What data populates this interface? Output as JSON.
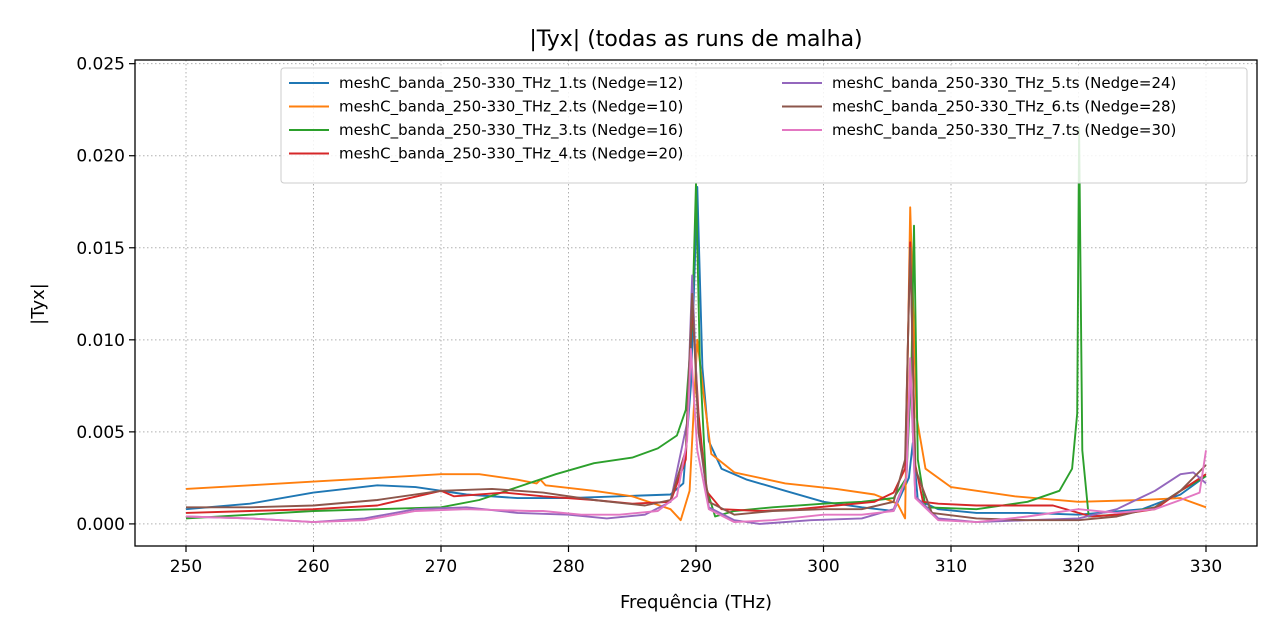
{
  "chart_data": {
    "type": "line",
    "title": "|Tyx| (todas as runs de malha)",
    "xlabel": "Frequência (THz)",
    "ylabel": "|Tyx|",
    "xlim": [
      246,
      334
    ],
    "ylim": [
      -0.0012,
      0.0252
    ],
    "x_ticks": [
      250,
      260,
      270,
      280,
      290,
      300,
      310,
      320,
      330
    ],
    "x_tick_labels": [
      "250",
      "260",
      "270",
      "280",
      "290",
      "300",
      "310",
      "320",
      "330"
    ],
    "y_ticks": [
      0.0,
      0.005,
      0.01,
      0.015,
      0.02,
      0.025
    ],
    "y_tick_labels": [
      "0.000",
      "0.005",
      "0.010",
      "0.015",
      "0.020",
      "0.025"
    ],
    "grid": true,
    "legend_position": "top-right",
    "legend_columns": 2,
    "series": [
      {
        "name": "meshC_banda_250-330_THz_1.ts (Nedge=12)",
        "color": "#1f77b4",
        "points": [
          [
            250,
            0.0008
          ],
          [
            255,
            0.0011
          ],
          [
            260,
            0.0017
          ],
          [
            265,
            0.0021
          ],
          [
            268,
            0.002
          ],
          [
            272,
            0.0016
          ],
          [
            276,
            0.0014
          ],
          [
            280,
            0.0014
          ],
          [
            284,
            0.0015
          ],
          [
            288,
            0.0016
          ],
          [
            289,
            0.0022
          ],
          [
            289.6,
            0.0075
          ],
          [
            290.1,
            0.0183
          ],
          [
            290.5,
            0.0085
          ],
          [
            291,
            0.0045
          ],
          [
            292,
            0.003
          ],
          [
            294,
            0.0024
          ],
          [
            297,
            0.0018
          ],
          [
            300,
            0.0012
          ],
          [
            303,
            0.0009
          ],
          [
            305.5,
            0.0007
          ],
          [
            306.7,
            0.0025
          ],
          [
            307,
            0.0044
          ],
          [
            307.4,
            0.0013
          ],
          [
            309,
            0.0008
          ],
          [
            312,
            0.0006
          ],
          [
            316,
            0.0006
          ],
          [
            320,
            0.0005
          ],
          [
            325,
            0.0008
          ],
          [
            328,
            0.0016
          ],
          [
            330,
            0.0026
          ]
        ]
      },
      {
        "name": "meshC_banda_250-330_THz_2.ts (Nedge=10)",
        "color": "#ff7f0e",
        "points": [
          [
            250,
            0.0019
          ],
          [
            255,
            0.0021
          ],
          [
            260,
            0.0023
          ],
          [
            265,
            0.0025
          ],
          [
            270,
            0.0027
          ],
          [
            273,
            0.0027
          ],
          [
            276,
            0.0024
          ],
          [
            277.5,
            0.0022
          ],
          [
            277.8,
            0.0024
          ],
          [
            278.2,
            0.0021
          ],
          [
            282,
            0.0018
          ],
          [
            285,
            0.0015
          ],
          [
            288,
            0.0008
          ],
          [
            288.8,
            0.0002
          ],
          [
            289.5,
            0.0018
          ],
          [
            290.1,
            0.01
          ],
          [
            290.6,
            0.007
          ],
          [
            291.2,
            0.0038
          ],
          [
            293,
            0.0028
          ],
          [
            297,
            0.0022
          ],
          [
            301,
            0.0019
          ],
          [
            304,
            0.0016
          ],
          [
            305.8,
            0.0011
          ],
          [
            306.4,
            0.0003
          ],
          [
            306.8,
            0.0172
          ],
          [
            307.3,
            0.0058
          ],
          [
            308,
            0.003
          ],
          [
            310,
            0.002
          ],
          [
            315,
            0.0015
          ],
          [
            320,
            0.0012
          ],
          [
            325,
            0.0013
          ],
          [
            328,
            0.0014
          ],
          [
            330,
            0.0009
          ]
        ]
      },
      {
        "name": "meshC_banda_250-330_THz_3.ts (Nedge=16)",
        "color": "#2ca02c",
        "points": [
          [
            250,
            0.0003
          ],
          [
            255,
            0.0005
          ],
          [
            260,
            0.0007
          ],
          [
            265,
            0.0008
          ],
          [
            270,
            0.0009
          ],
          [
            273,
            0.0013
          ],
          [
            276,
            0.002
          ],
          [
            279,
            0.0027
          ],
          [
            282,
            0.0033
          ],
          [
            285,
            0.0036
          ],
          [
            287,
            0.0041
          ],
          [
            288.5,
            0.0048
          ],
          [
            289.2,
            0.0062
          ],
          [
            289.7,
            0.011
          ],
          [
            290,
            0.0185
          ],
          [
            290.3,
            0.009
          ],
          [
            290.8,
            0.002
          ],
          [
            291.5,
            0.0004
          ],
          [
            293,
            0.0007
          ],
          [
            296,
            0.0009
          ],
          [
            300,
            0.0011
          ],
          [
            303,
            0.0012
          ],
          [
            305.5,
            0.0014
          ],
          [
            306.5,
            0.0025
          ],
          [
            306.9,
            0.0086
          ],
          [
            307.1,
            0.0162
          ],
          [
            307.4,
            0.0035
          ],
          [
            308,
            0.0009
          ],
          [
            312,
            0.0008
          ],
          [
            316,
            0.0012
          ],
          [
            318.5,
            0.0018
          ],
          [
            319.5,
            0.003
          ],
          [
            319.9,
            0.006
          ],
          [
            320.05,
            0.0215
          ],
          [
            320.3,
            0.004
          ],
          [
            320.8,
            0.0004
          ],
          [
            323,
            0.0005
          ],
          [
            326,
            0.0009
          ],
          [
            328,
            0.0018
          ],
          [
            330,
            0.0026
          ]
        ]
      },
      {
        "name": "meshC_banda_250-330_THz_4.ts (Nedge=20)",
        "color": "#d62728",
        "points": [
          [
            250,
            0.0006
          ],
          [
            255,
            0.0007
          ],
          [
            260,
            0.0008
          ],
          [
            265,
            0.001
          ],
          [
            270,
            0.0018
          ],
          [
            271,
            0.0015
          ],
          [
            275,
            0.0017
          ],
          [
            278,
            0.0015
          ],
          [
            282,
            0.0013
          ],
          [
            285,
            0.0011
          ],
          [
            288,
            0.0012
          ],
          [
            289.2,
            0.0035
          ],
          [
            289.7,
            0.012
          ],
          [
            290.2,
            0.006
          ],
          [
            290.8,
            0.0018
          ],
          [
            292,
            0.0008
          ],
          [
            295,
            0.0007
          ],
          [
            298,
            0.0008
          ],
          [
            301,
            0.001
          ],
          [
            304,
            0.0012
          ],
          [
            305.5,
            0.0017
          ],
          [
            306.4,
            0.003
          ],
          [
            306.8,
            0.0153
          ],
          [
            307.2,
            0.0032
          ],
          [
            307.8,
            0.0012
          ],
          [
            309,
            0.0011
          ],
          [
            312,
            0.001
          ],
          [
            315,
            0.001
          ],
          [
            318,
            0.001
          ],
          [
            321,
            0.0004
          ],
          [
            323,
            0.0005
          ],
          [
            326,
            0.0008
          ],
          [
            328,
            0.0018
          ],
          [
            330,
            0.0027
          ]
        ]
      },
      {
        "name": "meshC_banda_250-330_THz_5.ts (Nedge=24)",
        "color": "#9467bd",
        "points": [
          [
            250,
            0.0004
          ],
          [
            255,
            0.0003
          ],
          [
            260,
            0.0001
          ],
          [
            264,
            0.0003
          ],
          [
            268,
            0.0008
          ],
          [
            272,
            0.0009
          ],
          [
            276,
            0.0006
          ],
          [
            280,
            0.0005
          ],
          [
            283,
            0.0003
          ],
          [
            286,
            0.0005
          ],
          [
            288,
            0.0012
          ],
          [
            289.3,
            0.0055
          ],
          [
            289.7,
            0.0135
          ],
          [
            290.2,
            0.005
          ],
          [
            291,
            0.0009
          ],
          [
            293,
            0.0002
          ],
          [
            295,
            0.0
          ],
          [
            299,
            0.0002
          ],
          [
            303,
            0.0003
          ],
          [
            305.5,
            0.0008
          ],
          [
            306.5,
            0.0025
          ],
          [
            306.8,
            0.0085
          ],
          [
            307.2,
            0.0015
          ],
          [
            309,
            0.0003
          ],
          [
            312,
            0.0001
          ],
          [
            316,
            0.0002
          ],
          [
            320,
            0.0003
          ],
          [
            323,
            0.0008
          ],
          [
            326,
            0.0018
          ],
          [
            328,
            0.0027
          ],
          [
            329,
            0.0028
          ],
          [
            330,
            0.0022
          ]
        ]
      },
      {
        "name": "meshC_banda_250-330_THz_6.ts (Nedge=28)",
        "color": "#8c564b",
        "points": [
          [
            250,
            0.0009
          ],
          [
            255,
            0.0009
          ],
          [
            260,
            0.001
          ],
          [
            265,
            0.0013
          ],
          [
            270,
            0.0018
          ],
          [
            274,
            0.0019
          ],
          [
            278,
            0.0017
          ],
          [
            282,
            0.0013
          ],
          [
            286,
            0.001
          ],
          [
            288,
            0.0013
          ],
          [
            289.2,
            0.004
          ],
          [
            289.7,
            0.0125
          ],
          [
            290.2,
            0.005
          ],
          [
            291,
            0.0012
          ],
          [
            293,
            0.0005
          ],
          [
            296,
            0.0007
          ],
          [
            300,
            0.0008
          ],
          [
            303,
            0.0008
          ],
          [
            305.5,
            0.0012
          ],
          [
            306.4,
            0.0035
          ],
          [
            306.8,
            0.015
          ],
          [
            307.2,
            0.003
          ],
          [
            308.5,
            0.0006
          ],
          [
            312,
            0.0003
          ],
          [
            316,
            0.0002
          ],
          [
            320,
            0.0002
          ],
          [
            323,
            0.0004
          ],
          [
            326,
            0.0009
          ],
          [
            328,
            0.0018
          ],
          [
            330,
            0.0032
          ]
        ]
      },
      {
        "name": "meshC_banda_250-330_THz_7.ts (Nedge=30)",
        "color": "#e377c2",
        "points": [
          [
            250,
            0.0004
          ],
          [
            255,
            0.0003
          ],
          [
            260,
            0.0001
          ],
          [
            264,
            0.0002
          ],
          [
            268,
            0.0007
          ],
          [
            272,
            0.0008
          ],
          [
            277,
            0.0007
          ],
          [
            278,
            0.0007
          ],
          [
            281,
            0.0005
          ],
          [
            284,
            0.0005
          ],
          [
            287,
            0.0007
          ],
          [
            288.5,
            0.0015
          ],
          [
            289.3,
            0.0045
          ],
          [
            289.6,
            0.0095
          ],
          [
            290.1,
            0.004
          ],
          [
            291,
            0.0008
          ],
          [
            293,
            0.0001
          ],
          [
            296,
            0.0002
          ],
          [
            300,
            0.0005
          ],
          [
            303,
            0.0005
          ],
          [
            305.5,
            0.0007
          ],
          [
            306.5,
            0.0025
          ],
          [
            306.8,
            0.009
          ],
          [
            307.2,
            0.0014
          ],
          [
            309,
            0.0002
          ],
          [
            312,
            0.0001
          ],
          [
            316,
            0.0004
          ],
          [
            320,
            0.0008
          ],
          [
            323,
            0.0006
          ],
          [
            326,
            0.0008
          ],
          [
            328,
            0.0013
          ],
          [
            329.5,
            0.0017
          ],
          [
            330,
            0.004
          ]
        ]
      }
    ]
  }
}
